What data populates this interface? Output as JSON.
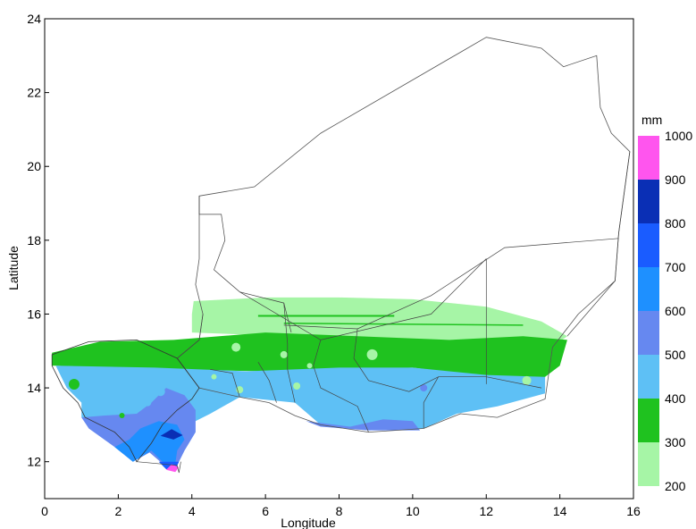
{
  "chart_data": {
    "type": "heatmap",
    "title": "",
    "xlabel": "Longitude",
    "ylabel": "Latitude",
    "xlim": [
      0,
      16
    ],
    "ylim": [
      11,
      24
    ],
    "x_ticks": [
      0,
      2,
      4,
      6,
      8,
      10,
      12,
      14,
      16
    ],
    "y_ticks": [
      12,
      14,
      16,
      18,
      20,
      22,
      24
    ],
    "grid": false,
    "legend_placement": "right",
    "colorbar": {
      "unit": "mm",
      "levels": [
        200,
        300,
        400,
        500,
        600,
        700,
        800,
        900,
        1000
      ],
      "colors": [
        "#a6f5a6",
        "#1fc21f",
        "#5ec0f5",
        "#6688f0",
        "#1e90ff",
        "#1a5cff",
        "#0a2fb5",
        "#ff55ee"
      ]
    },
    "bands": [
      {
        "range": "200-300",
        "color": "#a6f5a6",
        "north_lat": 16.4,
        "south_lat": 15.4
      },
      {
        "range": "300-400",
        "color": "#1fc21f",
        "north_lat": 15.5,
        "south_lat": 14.3
      },
      {
        "range": "400-500",
        "color": "#5ec0f5",
        "north_lat": 14.6,
        "south_lat": 12.8
      },
      {
        "range": "500-600",
        "color": "#6688f0",
        "north_lat": 13.6,
        "south_lat": 12.2
      },
      {
        "range": "600-700",
        "color": "#1e90ff",
        "north_lat": 13.1,
        "south_lat": 11.8
      },
      {
        "range": "800-900",
        "color": "#0a2fb5",
        "north_lat": 12.8,
        "south_lat": 12.6
      },
      {
        "range": "900-1000",
        "color": "#ff55ee",
        "north_lat": 11.9,
        "south_lat": 11.8
      }
    ]
  }
}
